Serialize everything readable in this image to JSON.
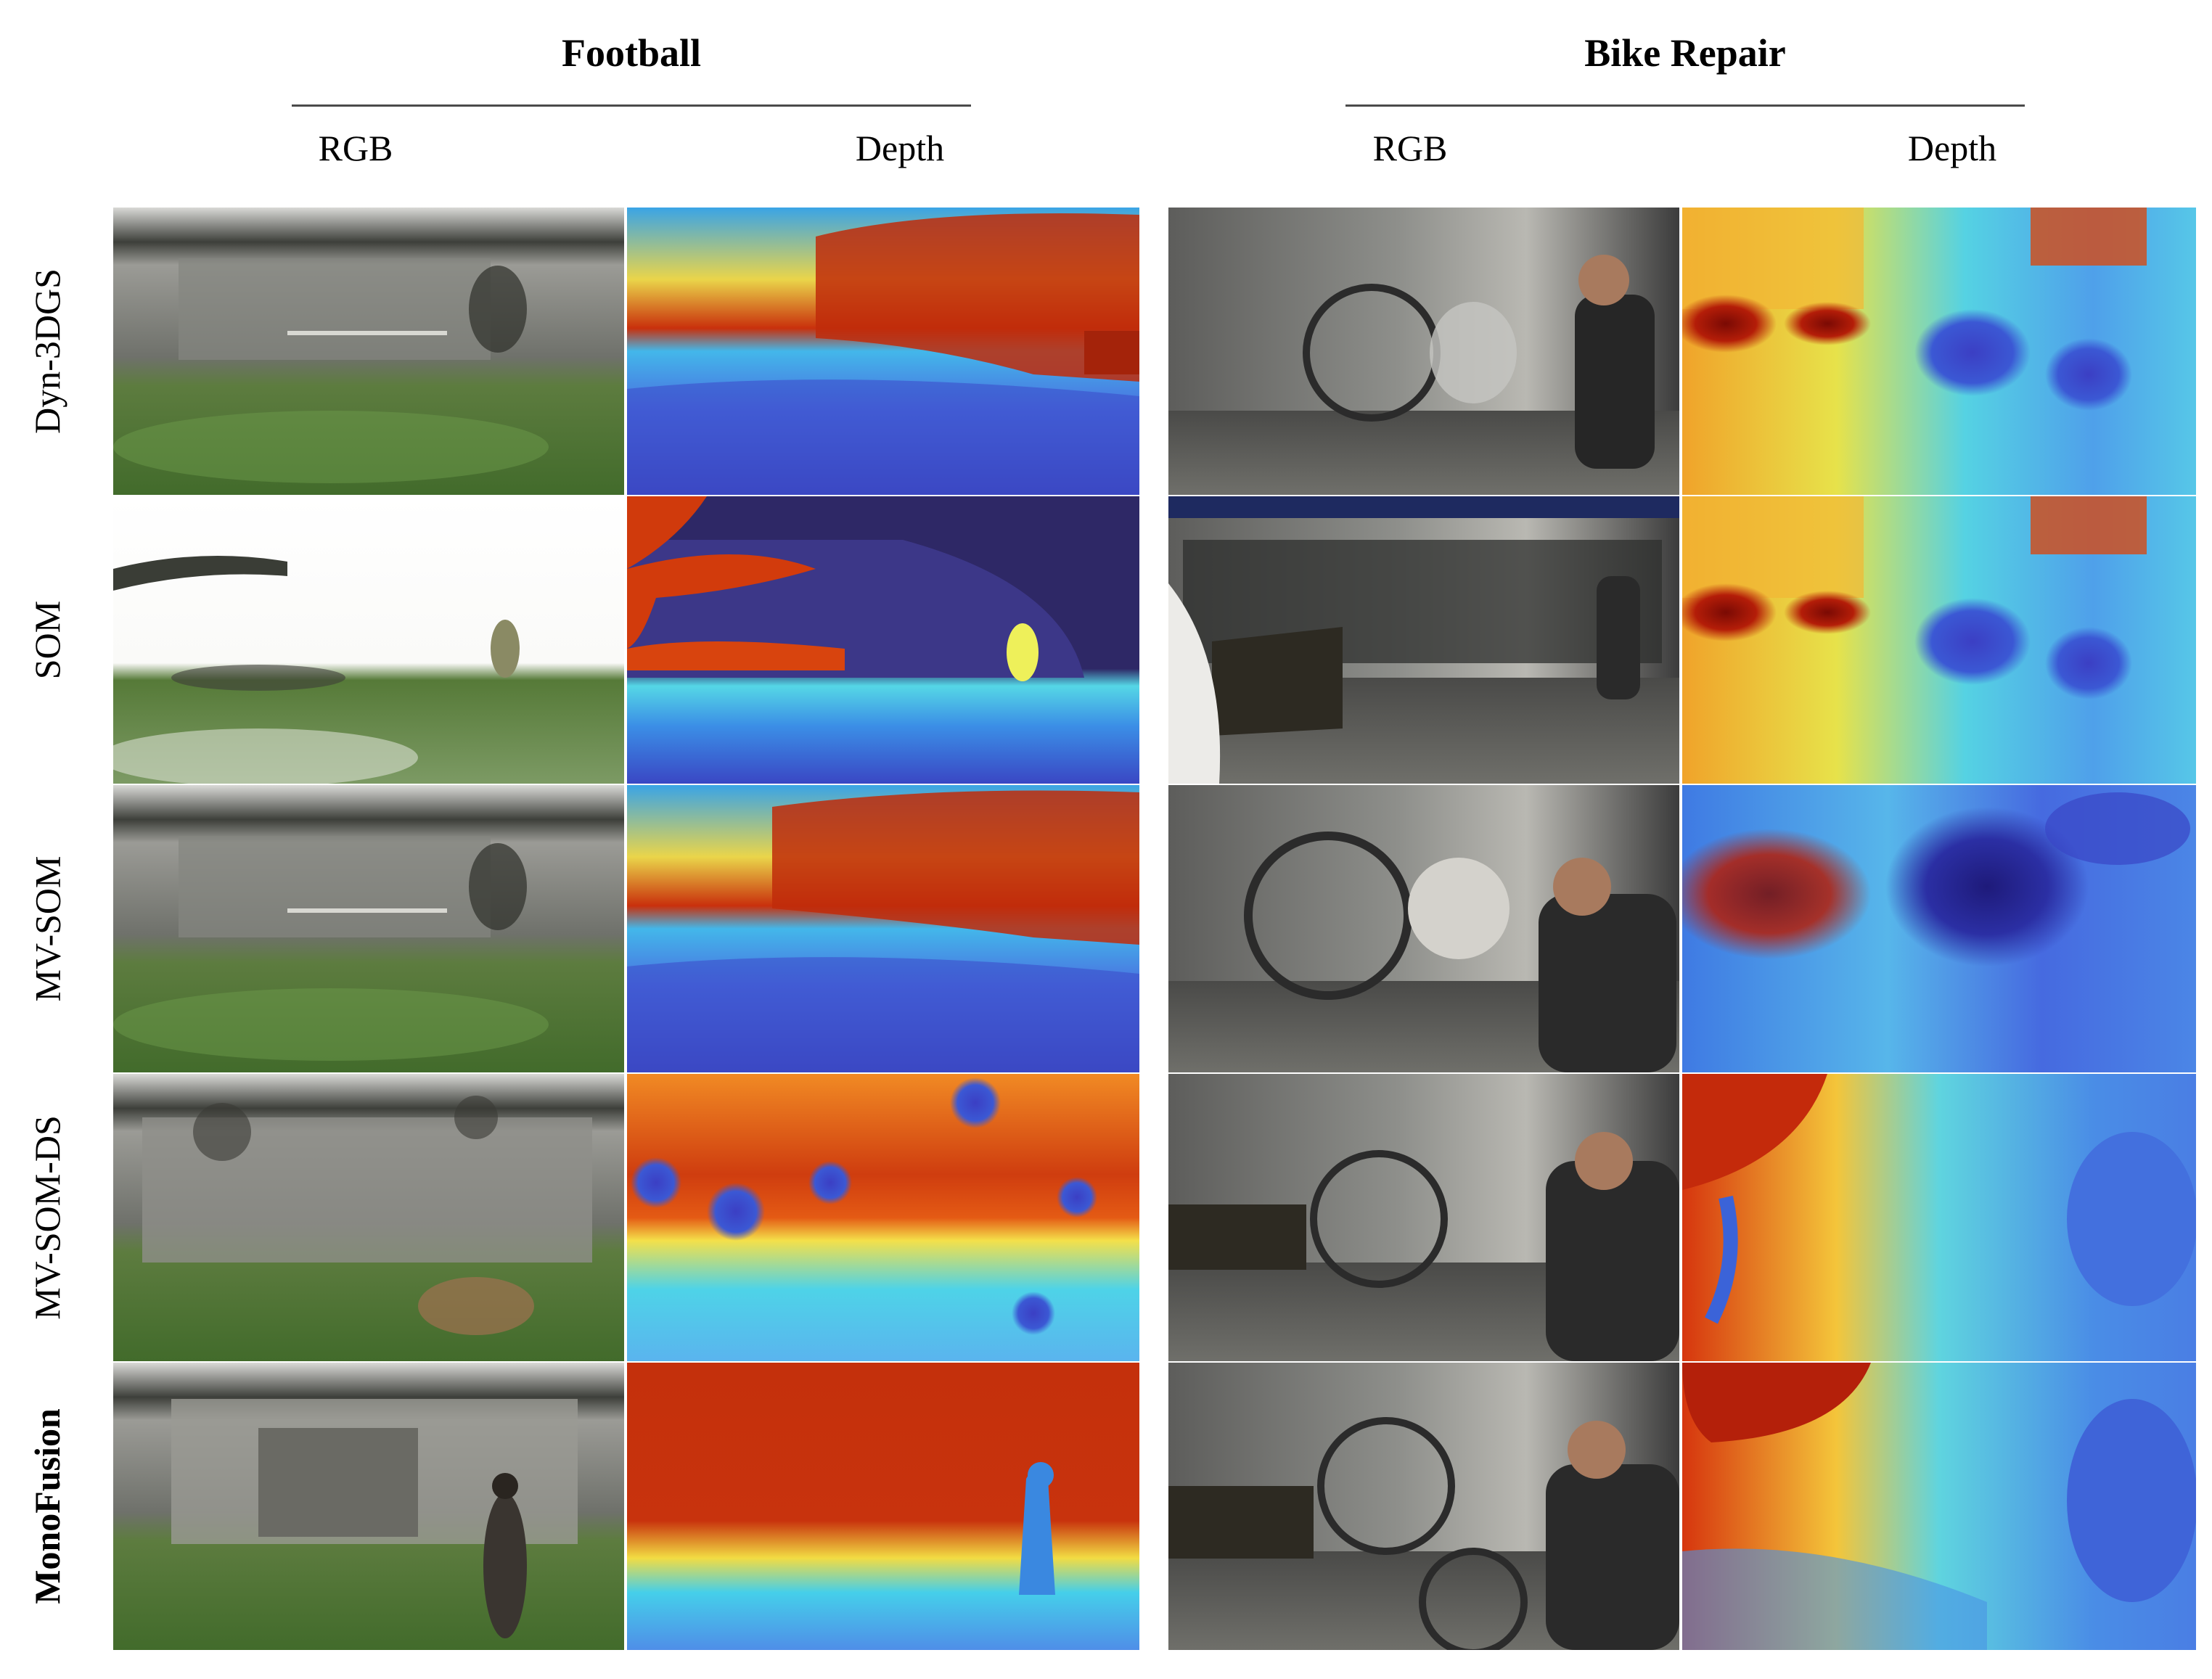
{
  "groups": [
    {
      "title": "Football",
      "columns": [
        "RGB",
        "Depth"
      ]
    },
    {
      "title": "Bike Repair",
      "columns": [
        "RGB",
        "Depth"
      ]
    }
  ],
  "rows": [
    {
      "label": "Dyn-3DGS",
      "bold": false
    },
    {
      "label": "SOM",
      "bold": false
    },
    {
      "label": "MV-SOM",
      "bold": false
    },
    {
      "label": "MV-SOM-DS",
      "bold": false
    },
    {
      "label": "MonoFusion",
      "bold": true
    }
  ],
  "colors": {
    "depth_near": "#3a46c8",
    "depth_mid": "#35c0e8",
    "depth_far": "#c8290a",
    "som_background": "#2e2866",
    "grass": "#4f7d35",
    "shop_wall": "#8a8a86"
  }
}
